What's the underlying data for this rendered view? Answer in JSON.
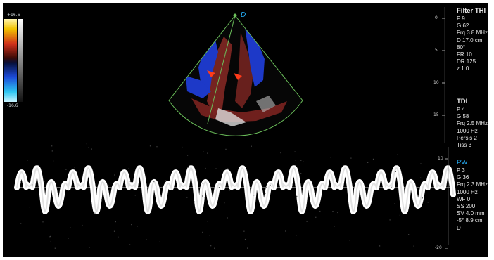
{
  "color_scale": {
    "top": "+16.6",
    "bottom": "-16.6"
  },
  "sector_marker": "D",
  "filter_panel": {
    "title": "Filter THI",
    "lines": [
      "P 9",
      "G 62",
      "Frq 3.8 MHz",
      "D 17.0 cm",
      "80°",
      "FR 10",
      "DR 125",
      "z 1.0"
    ]
  },
  "tdi_panel": {
    "title": "TDI",
    "lines": [
      "P 4",
      "G 58",
      "Frq 2.5 MHz",
      "1000 Hz",
      "Persis 2",
      "Tiss 3"
    ]
  },
  "pw_panel": {
    "title": "PW",
    "lines": [
      "P 3",
      "G 36",
      "Frq 2.3 MHz",
      "1000 Hz",
      "WF 0",
      "SS 200",
      "SV 4.0 mm",
      "-5° 8.9 cm",
      "D"
    ]
  },
  "depth_marks": [
    "0",
    "5",
    "10",
    "15"
  ],
  "velocity_marks": [
    "10",
    "-20"
  ],
  "colors": {
    "pw_accent": "#27b4ff",
    "sector_outline": "#6bbf5a"
  }
}
